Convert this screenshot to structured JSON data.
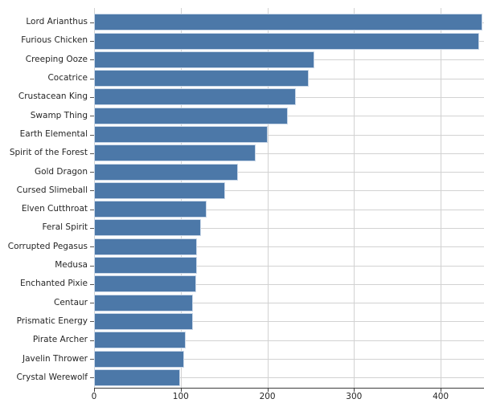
{
  "figure": {
    "background": "#ffffff",
    "title": ""
  },
  "chart_data": {
    "type": "bar",
    "orientation": "horizontal",
    "title": "",
    "xlabel": "",
    "ylabel": "",
    "categories": [
      "Lord Arianthus",
      "Furious Chicken",
      "Creeping Ooze",
      "Cocatrice",
      "Crustacean King",
      "Swamp Thing",
      "Earth Elemental",
      "Spirit of the Forest",
      "Gold Dragon",
      "Cursed Slimeball",
      "Elven Cutthroat",
      "Feral Spirit",
      "Corrupted Pegasus",
      "Medusa",
      "Enchanted Pixie",
      "Centaur",
      "Prismatic Energy",
      "Pirate Archer",
      "Javelin Thrower",
      "Crystal Werewolf"
    ],
    "values": [
      448,
      444,
      254,
      248,
      233,
      224,
      200,
      186,
      166,
      151,
      130,
      123,
      119,
      119,
      118,
      114,
      114,
      106,
      104,
      99
    ],
    "xlim": [
      0,
      450
    ],
    "x_ticks": [
      0,
      100,
      200,
      300,
      400
    ],
    "grid": true,
    "legend": false,
    "bar_color": "#4c78a8",
    "bar_edge_color": "#c9d7e8",
    "grid_color": "#d2d2d2",
    "axis_color": "#3d3d3d",
    "tick_color": "#555555",
    "text_color": "#262626"
  }
}
